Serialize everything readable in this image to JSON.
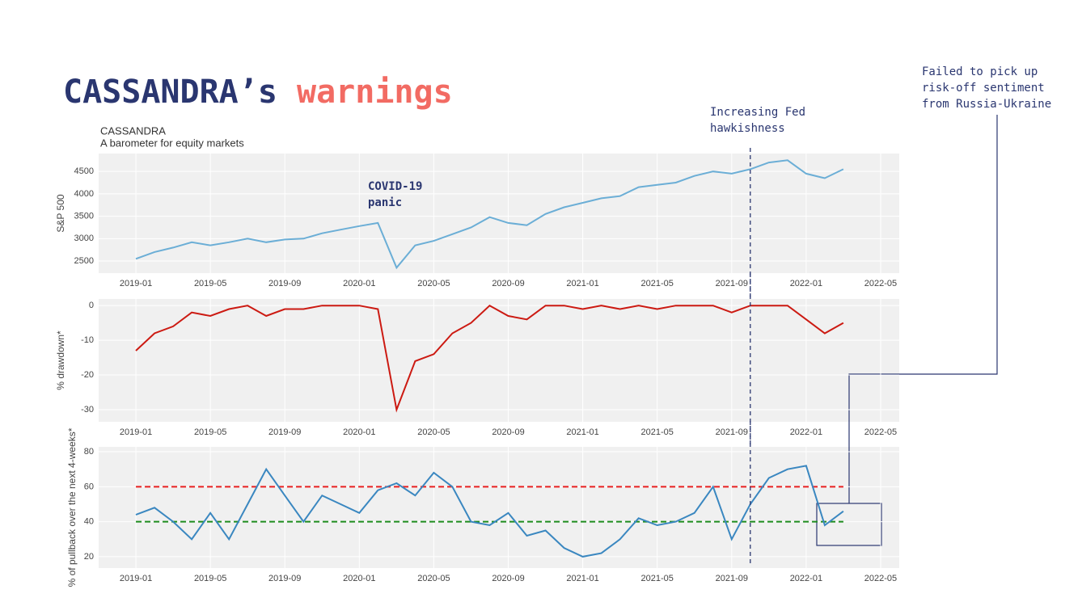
{
  "slide": {
    "title": [
      "CASSANDRA’s",
      "warnings"
    ],
    "annotations": {
      "covid": [
        "COVID-19",
        "panic"
      ],
      "fed": [
        "Increasing Fed",
        "hawkishness"
      ],
      "russia": [
        "Failed to pick up",
        "risk-off sentiment",
        "from Russia-Ukraine"
      ]
    }
  },
  "chart_data": [
    {
      "type": "line",
      "title": "CASSANDRA",
      "subtitle": "A barometer for equity markets",
      "y_label": "S&P 500",
      "x": [
        "2019-01",
        "2019-02",
        "2019-03",
        "2019-04",
        "2019-05",
        "2019-06",
        "2019-07",
        "2019-08",
        "2019-09",
        "2019-10",
        "2019-11",
        "2019-12",
        "2020-01",
        "2020-02",
        "2020-03",
        "2020-04",
        "2020-05",
        "2020-06",
        "2020-07",
        "2020-08",
        "2020-09",
        "2020-10",
        "2020-11",
        "2020-12",
        "2021-01",
        "2021-02",
        "2021-03",
        "2021-04",
        "2021-05",
        "2021-06",
        "2021-07",
        "2021-08",
        "2021-09",
        "2021-10",
        "2021-11",
        "2021-12",
        "2022-01",
        "2022-02",
        "2022-03"
      ],
      "series": [
        {
          "color": "#6baed6",
          "values": [
            2550,
            2700,
            2800,
            2920,
            2850,
            2920,
            3000,
            2920,
            2980,
            3000,
            3120,
            3200,
            3280,
            3350,
            2350,
            2850,
            2950,
            3100,
            3250,
            3480,
            3350,
            3300,
            3550,
            3700,
            3800,
            3900,
            3950,
            4150,
            4200,
            4250,
            4400,
            4500,
            4450,
            4550,
            4700,
            4750,
            4450,
            4350,
            4550
          ]
        }
      ],
      "xlim": [
        "2018-11",
        "2022-06"
      ],
      "xticks": [
        "2019-01",
        "2019-05",
        "2019-09",
        "2020-01",
        "2020-05",
        "2020-09",
        "2021-01",
        "2021-05",
        "2021-09",
        "2022-01",
        "2022-05"
      ],
      "ylim": [
        2230,
        4900
      ],
      "yticks": [
        2500,
        3000,
        3500,
        4000,
        4500
      ],
      "grid": true,
      "event_x": "2021-10"
    },
    {
      "type": "line",
      "y_label": "% drawdown*",
      "x": [
        "2019-01",
        "2019-02",
        "2019-03",
        "2019-04",
        "2019-05",
        "2019-06",
        "2019-07",
        "2019-08",
        "2019-09",
        "2019-10",
        "2019-11",
        "2019-12",
        "2020-01",
        "2020-02",
        "2020-03",
        "2020-04",
        "2020-05",
        "2020-06",
        "2020-07",
        "2020-08",
        "2020-09",
        "2020-10",
        "2020-11",
        "2020-12",
        "2021-01",
        "2021-02",
        "2021-03",
        "2021-04",
        "2021-05",
        "2021-06",
        "2021-07",
        "2021-08",
        "2021-09",
        "2021-10",
        "2021-11",
        "2021-12",
        "2022-01",
        "2022-02",
        "2022-03"
      ],
      "series": [
        {
          "color": "#cc1a12",
          "values": [
            -13,
            -8,
            -6,
            -2,
            -3,
            -1,
            0,
            -3,
            -1,
            -1,
            0,
            0,
            0,
            -1,
            -30,
            -16,
            -14,
            -8,
            -5,
            0,
            -3,
            -4,
            0,
            0,
            -1,
            0,
            -1,
            0,
            -1,
            0,
            0,
            0,
            -2,
            0,
            0,
            0,
            -4,
            -8,
            -5
          ]
        }
      ],
      "xlim": [
        "2018-11",
        "2022-06"
      ],
      "xticks": [
        "2019-01",
        "2019-05",
        "2019-09",
        "2020-01",
        "2020-05",
        "2020-09",
        "2021-01",
        "2021-05",
        "2021-09",
        "2022-01",
        "2022-05"
      ],
      "ylim": [
        -33.5,
        1.9
      ],
      "yticks": [
        -30,
        -20,
        -10,
        0
      ],
      "grid": true,
      "event_x": "2021-10"
    },
    {
      "type": "line",
      "y_label": "% of pullback over the next 4-weeks*",
      "x": [
        "2019-01",
        "2019-02",
        "2019-03",
        "2019-04",
        "2019-05",
        "2019-06",
        "2019-07",
        "2019-08",
        "2019-09",
        "2019-10",
        "2019-11",
        "2019-12",
        "2020-01",
        "2020-02",
        "2020-03",
        "2020-04",
        "2020-05",
        "2020-06",
        "2020-07",
        "2020-08",
        "2020-09",
        "2020-10",
        "2020-11",
        "2020-12",
        "2021-01",
        "2021-02",
        "2021-03",
        "2021-04",
        "2021-05",
        "2021-06",
        "2021-07",
        "2021-08",
        "2021-09",
        "2021-10",
        "2021-11",
        "2021-12",
        "2022-01",
        "2022-02",
        "2022-03"
      ],
      "series": [
        {
          "color": "#3a87c0",
          "values": [
            44,
            48,
            40,
            30,
            45,
            30,
            50,
            70,
            55,
            40,
            55,
            50,
            45,
            58,
            62,
            55,
            68,
            60,
            40,
            38,
            45,
            32,
            35,
            25,
            20,
            22,
            30,
            42,
            38,
            40,
            45,
            60,
            30,
            50,
            65,
            70,
            72,
            38,
            46
          ]
        }
      ],
      "thresholds": [
        {
          "value": 60,
          "color": "#e82020"
        },
        {
          "value": 40,
          "color": "#1e8c1e"
        }
      ],
      "xlim": [
        "2018-11",
        "2022-06"
      ],
      "xticks": [
        "2019-01",
        "2019-05",
        "2019-09",
        "2020-01",
        "2020-05",
        "2020-09",
        "2021-01",
        "2021-05",
        "2021-09",
        "2022-01",
        "2022-05"
      ],
      "ylim": [
        13.5,
        82.8
      ],
      "yticks": [
        20,
        40,
        60,
        80
      ],
      "grid": true,
      "event_x": "2021-10"
    }
  ]
}
